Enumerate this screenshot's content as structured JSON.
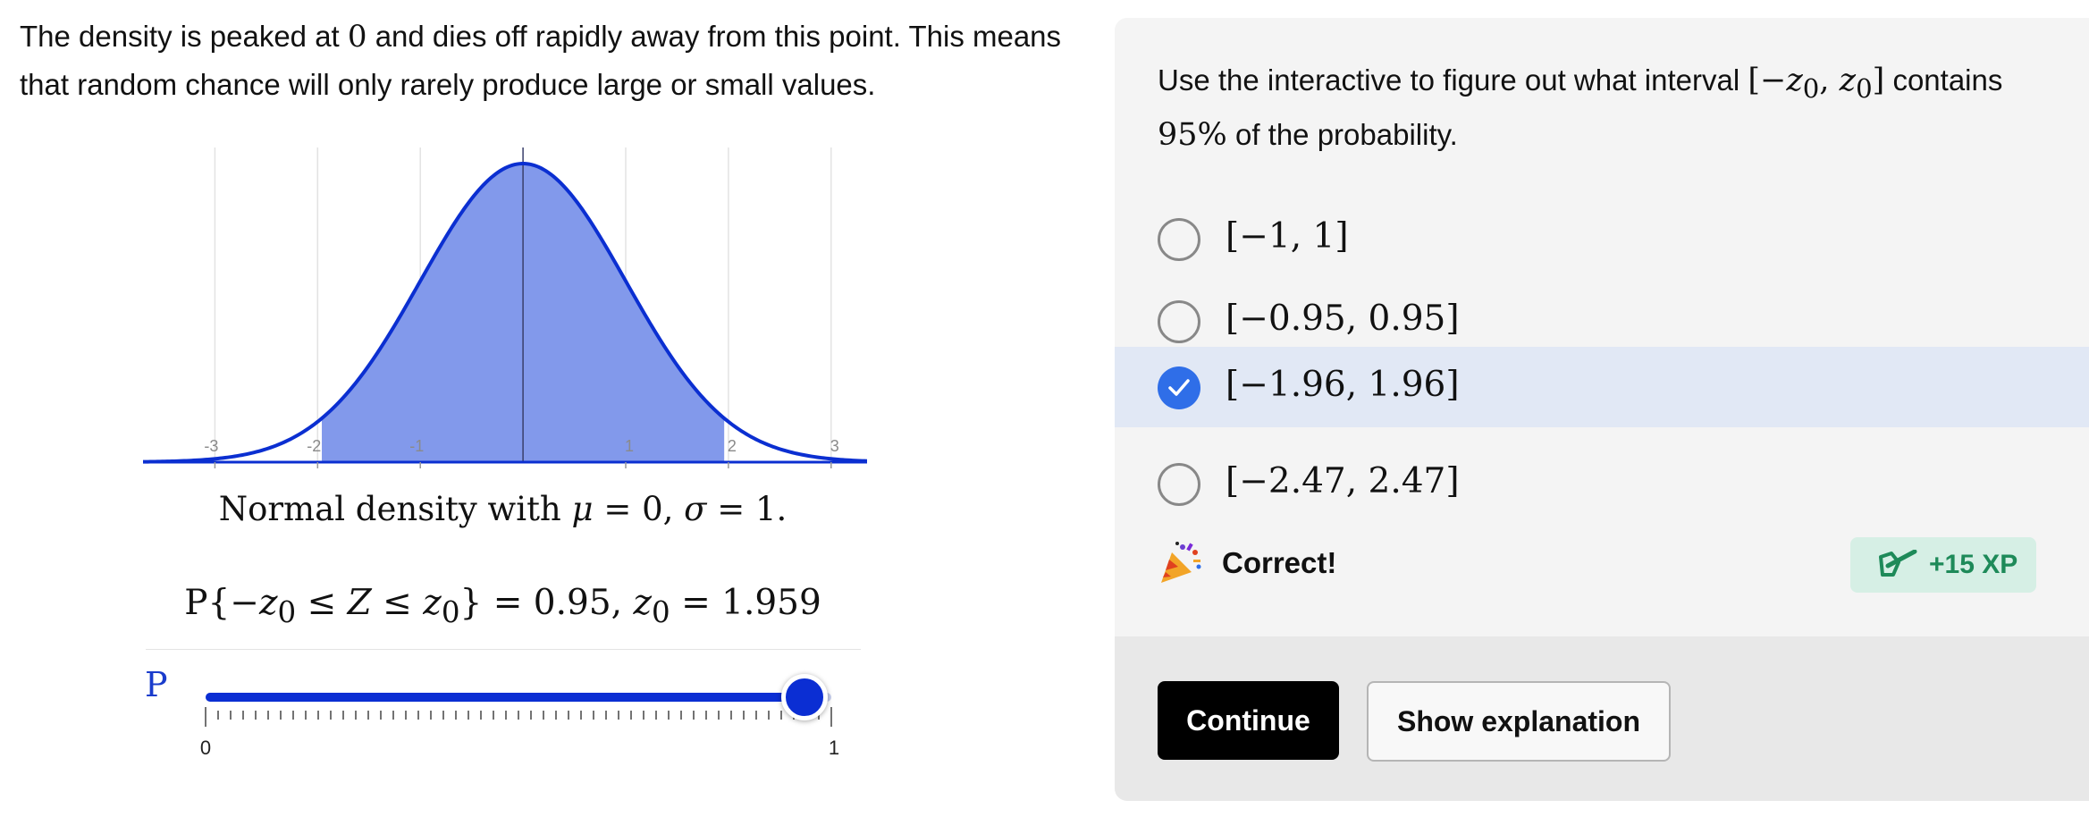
{
  "intro": {
    "before": "The density is peaked at ",
    "zero": "0",
    "after": " and dies off rapidly away from this point. This means that random chance will only rarely produce large or small values."
  },
  "chart_data": {
    "type": "area",
    "function": "standard normal density",
    "mu": 0,
    "sigma": 1,
    "xlim": [
      -3.7,
      3.35
    ],
    "ylim": [
      0,
      0.4
    ],
    "x_ticks": [
      -3,
      -2,
      -1,
      1,
      2,
      3
    ],
    "x_tick_labels": [
      "-3",
      "-2",
      "-1",
      "1",
      "2",
      "3"
    ],
    "shaded_interval": [
      -1.959,
      1.959
    ],
    "grid": true,
    "colors": {
      "curve": "#0b2fd1",
      "fill": "#8299eb",
      "grid": "#e3e3e3"
    }
  },
  "caption": {
    "prefix": "Normal density with ",
    "mu": "μ",
    "middle": " = 0, ",
    "sigma": "σ",
    "suffix": " = 1."
  },
  "probability": {
    "p": "P",
    "open": "{−",
    "z": "z",
    "sub": "0",
    "le": " ≤ ",
    "capZ": "Z",
    "close": "} = 0.95, ",
    "eq": " = 1.959"
  },
  "slider": {
    "label": "P",
    "min_label": "0",
    "max_label": "1",
    "value": 0.95,
    "tick_count": 51,
    "colors": {
      "fill": "#0b2ed3",
      "track": "#c7cfee"
    }
  },
  "question": {
    "prompt_before": "Use the interactive to figure out what interval ",
    "prompt_interval": "[−z0, z0]",
    "prompt_middle": " contains ",
    "prompt_percent": "95%",
    "prompt_after": " of the probability.",
    "options": [
      {
        "label": "[−1, 1]",
        "selected": false
      },
      {
        "label": "[−0.95, 0.95]",
        "selected": false
      },
      {
        "label": "[−1.96, 1.96]",
        "selected": true
      },
      {
        "label": "[−2.47, 2.47]",
        "selected": false
      }
    ]
  },
  "feedback": {
    "icon": "party-popper-icon",
    "text": "Correct!",
    "xp_icon": "pen-check-icon",
    "xp_text": "+15 XP",
    "colors": {
      "badge_bg": "#d6efe5",
      "badge_text": "#1e8a59"
    }
  },
  "footer": {
    "continue_label": "Continue",
    "explain_label": "Show explanation"
  },
  "colors": {
    "selected_option_bg": "#e1e8f5",
    "check_blue": "#2f6ee8",
    "panel_bg": "#f4f4f4"
  }
}
